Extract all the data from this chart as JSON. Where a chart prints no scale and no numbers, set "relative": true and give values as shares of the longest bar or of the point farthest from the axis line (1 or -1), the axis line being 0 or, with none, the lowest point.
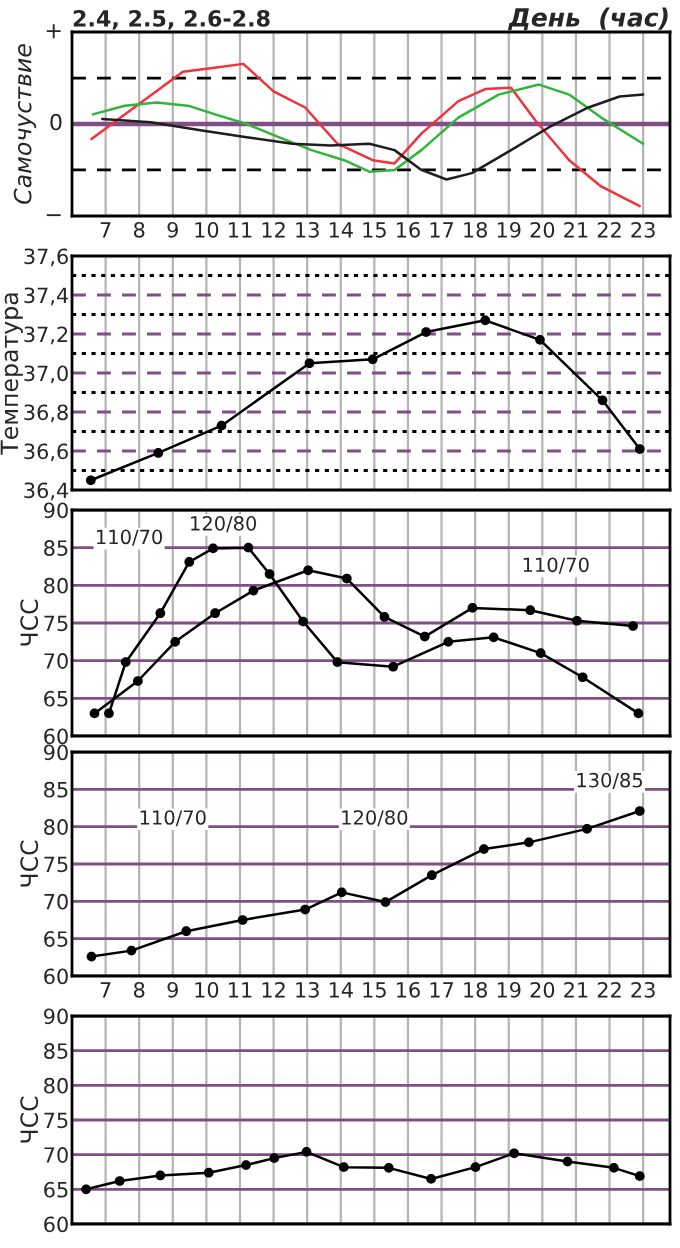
{
  "chart_data": [
    {
      "type": "line",
      "title": "2.4, 2.5, 2.6-2.8",
      "subtitle": "День  (час)",
      "ylabel": "Самочуствие",
      "relative": true,
      "annotations": [
        "+",
        "0",
        "−"
      ],
      "xlim": [
        6,
        23.8
      ],
      "xticks": [
        7,
        8,
        9,
        10,
        11,
        12,
        13,
        14,
        15,
        16,
        17,
        18,
        19,
        20,
        21,
        22,
        23
      ],
      "tick_labels": "x",
      "grid": "x",
      "marker": "none",
      "line_style": "solid",
      "ref_lines": [
        {
          "axis": "y",
          "value": 0,
          "color": "#7f4f86",
          "line_style": "solid"
        },
        {
          "axis": "y",
          "value": 0.559,
          "color": "#000000",
          "line_style": "dashed"
        },
        {
          "axis": "y",
          "value": -0.559,
          "color": "#000000",
          "line_style": "dashed"
        }
      ],
      "series": [
        {
          "color": "#f0323c",
          "x": [
            6.58,
            9.3,
            10.07,
            11.1,
            12.0,
            12.94,
            13.9,
            14.95,
            15.6,
            16.4,
            17.5,
            18.3,
            19.07,
            19.8,
            20.8,
            21.75,
            22.9
          ],
          "values": [
            -0.184,
            0.637,
            0.676,
            0.732,
            0.397,
            0.201,
            -0.24,
            -0.441,
            -0.48,
            -0.117,
            0.279,
            0.425,
            0.441,
            0.039,
            -0.441,
            -0.76,
            -1
          ]
        },
        {
          "color": "#32b43c",
          "x": [
            6.62,
            7.57,
            8.53,
            9.5,
            10.26,
            11.2,
            12.17,
            13.13,
            14.1,
            14.85,
            15.6,
            16.4,
            17.5,
            18.7,
            19.9,
            20.8,
            21.75,
            23.0
          ],
          "values": [
            0.117,
            0.223,
            0.263,
            0.218,
            0.117,
            0.0,
            -0.162,
            -0.318,
            -0.441,
            -0.581,
            -0.559,
            -0.318,
            0.078,
            0.358,
            0.48,
            0.358,
            0.078,
            -0.24
          ]
        },
        {
          "color": "#1e1e1e",
          "x": [
            6.9,
            8.34,
            9.87,
            11.2,
            12.56,
            13.7,
            14.85,
            15.6,
            16.4,
            17.15,
            17.9,
            19.07,
            20.2,
            21.37,
            22.3,
            23.0
          ],
          "values": [
            0.061,
            0.022,
            -0.078,
            -0.162,
            -0.24,
            -0.263,
            -0.24,
            -0.318,
            -0.559,
            -0.676,
            -0.598,
            -0.318,
            -0.039,
            0.201,
            0.335,
            0.358
          ]
        }
      ]
    },
    {
      "type": "line",
      "ylabel": "Температура",
      "xlim": [
        6,
        23.8
      ],
      "xticks": [
        7,
        8,
        9,
        10,
        11,
        12,
        13,
        14,
        15,
        16,
        17,
        18,
        19,
        20,
        21,
        22,
        23
      ],
      "ylim": [
        36.4,
        37.6
      ],
      "yticks": [
        {
          "value": 36.4,
          "label": "36,4"
        },
        {
          "value": 36.6,
          "label": "36,6"
        },
        {
          "value": 36.8,
          "label": "36,8"
        },
        {
          "value": 37.0,
          "label": "37,0"
        },
        {
          "value": 37.2,
          "label": "37,2"
        },
        {
          "value": 37.4,
          "label": "37,4"
        },
        {
          "value": 37.6,
          "label": "37,6"
        }
      ],
      "tick_labels": "y",
      "grid": "x",
      "marker": "circle",
      "line_style": "solid",
      "ref_lines": [
        {
          "axis": "y",
          "value": 36.6,
          "color": "#7f4f86",
          "line_style": "dashed"
        },
        {
          "axis": "y",
          "value": 36.8,
          "color": "#7f4f86",
          "line_style": "dashed"
        },
        {
          "axis": "y",
          "value": 37.0,
          "color": "#7f4f86",
          "line_style": "dashed"
        },
        {
          "axis": "y",
          "value": 37.2,
          "color": "#7f4f86",
          "line_style": "dashed"
        },
        {
          "axis": "y",
          "value": 37.4,
          "color": "#7f4f86",
          "line_style": "dashed"
        },
        {
          "axis": "y",
          "value": 36.5,
          "color": "#000000",
          "line_style": "dotted"
        },
        {
          "axis": "y",
          "value": 36.7,
          "color": "#000000",
          "line_style": "dotted"
        },
        {
          "axis": "y",
          "value": 36.9,
          "color": "#000000",
          "line_style": "dotted"
        },
        {
          "axis": "y",
          "value": 37.1,
          "color": "#000000",
          "line_style": "dotted"
        },
        {
          "axis": "y",
          "value": 37.3,
          "color": "#000000",
          "line_style": "dotted"
        },
        {
          "axis": "y",
          "value": 37.5,
          "color": "#000000",
          "line_style": "dotted"
        }
      ],
      "series": [
        {
          "color": "#000000",
          "x": [
            6.56,
            8.57,
            10.45,
            13.07,
            14.95,
            16.54,
            18.3,
            19.93,
            21.79,
            22.9
          ],
          "values": [
            36.45,
            36.59,
            36.73,
            37.05,
            37.07,
            37.21,
            37.27,
            37.17,
            36.86,
            36.61
          ]
        }
      ]
    },
    {
      "type": "line",
      "ylabel": "ЧСС",
      "xlim": [
        6,
        23.8
      ],
      "xticks": [
        7,
        8,
        9,
        10,
        11,
        12,
        13,
        14,
        15,
        16,
        17,
        18,
        19,
        20,
        21,
        22,
        23
      ],
      "ylim": [
        60,
        90
      ],
      "yticks": [
        60,
        65,
        70,
        75,
        80,
        85,
        90
      ],
      "tick_labels": "y",
      "grid": true,
      "marker": "circle",
      "line_style": "solid",
      "annotations": [
        {
          "text": "110/70",
          "x": 7.7,
          "y": 86.2
        },
        {
          "text": "120/80",
          "x": 10.5,
          "y": 88.0
        },
        {
          "text": "110/70",
          "x": 20.4,
          "y": 82.5
        }
      ],
      "series": [
        {
          "color": "#000000",
          "x": [
            7.1,
            7.6,
            8.63,
            9.49,
            10.2,
            11.25,
            11.88,
            12.88,
            13.9,
            15.56,
            17.2,
            18.55,
            19.95,
            21.2,
            22.86
          ],
          "values": [
            63,
            69.8,
            76.3,
            83.1,
            84.9,
            85,
            81.5,
            75.2,
            69.8,
            69.2,
            72.5,
            73.1,
            71,
            67.8,
            63
          ]
        },
        {
          "color": "#000000",
          "x": [
            6.67,
            7.96,
            9.07,
            10.26,
            11.4,
            13.03,
            14.18,
            15.3,
            16.5,
            17.92,
            19.64,
            21.03,
            22.7
          ],
          "values": [
            63,
            67.3,
            72.5,
            76.3,
            79.3,
            82.0,
            80.9,
            75.8,
            73.2,
            77,
            76.7,
            75.3,
            74.6
          ]
        }
      ]
    },
    {
      "type": "line",
      "ylabel": "ЧСС",
      "xlim": [
        6,
        23.8
      ],
      "xticks": [
        7,
        8,
        9,
        10,
        11,
        12,
        13,
        14,
        15,
        16,
        17,
        18,
        19,
        20,
        21,
        22,
        23
      ],
      "ylim": [
        60,
        90
      ],
      "yticks": [
        60,
        65,
        70,
        75,
        80,
        85,
        90
      ],
      "grid": true,
      "marker": "circle",
      "line_style": "solid",
      "annotations": [
        {
          "text": "110/70",
          "x": 9.0,
          "y": 81.0
        },
        {
          "text": "120/80",
          "x": 15.0,
          "y": 81.0
        },
        {
          "text": "130/85",
          "x": 22.0,
          "y": 86.0
        }
      ],
      "series": [
        {
          "color": "#000000",
          "x": [
            6.58,
            7.77,
            9.4,
            11.08,
            12.94,
            14.03,
            15.33,
            16.71,
            18.26,
            19.6,
            21.33,
            22.9
          ],
          "values": [
            62.6,
            63.4,
            66,
            67.5,
            68.9,
            71.2,
            69.9,
            73.5,
            77,
            77.9,
            79.7,
            82.1
          ]
        }
      ]
    },
    {
      "type": "line",
      "ylabel": "ЧСС",
      "xlim": [
        6,
        23.8
      ],
      "xticks": [
        7,
        8,
        9,
        10,
        11,
        12,
        13,
        14,
        15,
        16,
        17,
        18,
        19,
        20,
        21,
        22,
        23
      ],
      "ylim": [
        60,
        90
      ],
      "yticks": [
        60,
        65,
        70,
        75,
        80,
        85,
        90
      ],
      "tick_labels": "y",
      "grid": true,
      "marker": "circle",
      "line_style": "solid",
      "series": [
        {
          "color": "#000000",
          "x": [
            6.42,
            7.42,
            8.63,
            10.07,
            11.18,
            12.02,
            12.98,
            14.09,
            15.43,
            16.69,
            18.01,
            19.16,
            20.75,
            22.13,
            22.9
          ],
          "values": [
            65,
            66.2,
            67,
            67.4,
            68.5,
            69.5,
            70.4,
            68.2,
            68.1,
            66.5,
            68.2,
            70.2,
            69.0,
            68.1,
            66.9
          ]
        }
      ]
    }
  ]
}
